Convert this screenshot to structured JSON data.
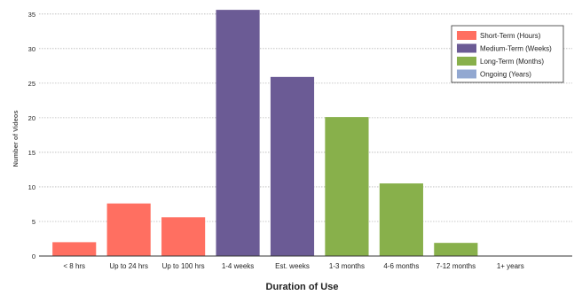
{
  "chart_data": {
    "type": "bar",
    "title": "",
    "xlabel": "Duration of Use",
    "ylabel": "Number of Videos",
    "ylim": [
      0,
      36
    ],
    "yticks": [
      0,
      5,
      10,
      15,
      20,
      25,
      30,
      35
    ],
    "grid": true,
    "legend_position": "top-right",
    "categories": [
      "< 8 hrs",
      "Up to 24 hrs",
      "Up to 100 hrs",
      "1-4 weeks",
      "Est. weeks",
      "1-3 months",
      "4-6 months",
      "7-12 months",
      "1+ years"
    ],
    "values": [
      2,
      7.6,
      5.6,
      35.6,
      25.9,
      20.1,
      10.5,
      1.9,
      0
    ],
    "groups": [
      "Short-Term (Hours)",
      "Short-Term (Hours)",
      "Short-Term (Hours)",
      "Medium-Term (Weeks)",
      "Medium-Term (Weeks)",
      "Long-Term (Months)",
      "Long-Term (Months)",
      "Long-Term (Months)",
      "Ongoing (Years)"
    ],
    "legend": [
      {
        "name": "Short-Term (Hours)",
        "color": "#ff6f61"
      },
      {
        "name": "Medium-Term (Weeks)",
        "color": "#6b5b95"
      },
      {
        "name": "Long-Term (Months)",
        "color": "#88b04b"
      },
      {
        "name": "Ongoing (Years)",
        "color": "#92a8d1"
      }
    ]
  }
}
